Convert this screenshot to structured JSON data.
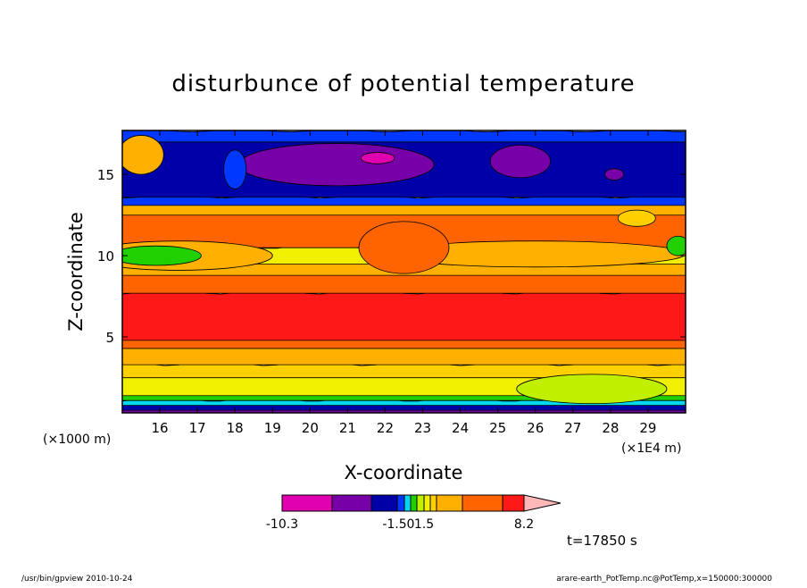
{
  "chart_data": {
    "type": "heatmap",
    "subtype": "filled-contour",
    "title": "disturbunce of potential temperature",
    "xlabel": "X-coordinate",
    "ylabel": "Z-coordinate",
    "x_units_label": "(×1E4 m)",
    "y_units_label": "(×1000 m)",
    "xlim": [
      15,
      30
    ],
    "ylim": [
      0.33,
      17.7
    ],
    "xticks": [
      "16",
      "17",
      "18",
      "19",
      "20",
      "21",
      "22",
      "23",
      "24",
      "25",
      "26",
      "27",
      "28",
      "29"
    ],
    "xtick_values": [
      16,
      17,
      18,
      19,
      20,
      21,
      22,
      23,
      24,
      25,
      26,
      27,
      28,
      29
    ],
    "yticks": [
      "5",
      "10",
      "15"
    ],
    "ytick_values": [
      5,
      10,
      15
    ],
    "time_label": "t=17850 s",
    "colorbar": {
      "labels": [
        "-10.3",
        "-1.5",
        "0",
        "1.5",
        "8.2"
      ],
      "colors": [
        "#e000b0",
        "#7800a8",
        "#0000a8",
        "#0038ff",
        "#00d8f0",
        "#20d000",
        "#c0f000",
        "#f0f000",
        "#ffd000",
        "#ffb000",
        "#ff6400",
        "#ff1818",
        "#ff7878",
        "#ffb8b8"
      ]
    },
    "bands": [
      {
        "z0": 0.33,
        "z1": 0.6,
        "color": "#7800a8"
      },
      {
        "z0": 0.6,
        "z1": 0.9,
        "color": "#0000a8"
      },
      {
        "z0": 0.9,
        "z1": 1.2,
        "color": "#00d8f0"
      },
      {
        "z0": 1.2,
        "z1": 1.5,
        "color": "#20d000"
      },
      {
        "z0": 1.5,
        "z1": 2.6,
        "color": "#f0f000"
      },
      {
        "z0": 2.6,
        "z1": 3.4,
        "color": "#ffd000"
      },
      {
        "z0": 3.4,
        "z1": 4.4,
        "color": "#ffb000"
      },
      {
        "z0": 4.4,
        "z1": 4.9,
        "color": "#ff6400"
      },
      {
        "z0": 4.9,
        "z1": 7.8,
        "color": "#ff1818"
      },
      {
        "z0": 7.8,
        "z1": 8.9,
        "color": "#ff6400"
      },
      {
        "z0": 8.9,
        "z1": 9.6,
        "color": "#ffb000"
      },
      {
        "z0": 9.6,
        "z1": 10.6,
        "color": "#f0f000"
      },
      {
        "z0": 10.6,
        "z1": 12.6,
        "color": "#ff6400"
      },
      {
        "z0": 12.6,
        "z1": 13.2,
        "color": "#ffb000"
      },
      {
        "z0": 13.2,
        "z1": 13.7,
        "color": "#0038ff"
      },
      {
        "z0": 13.7,
        "z1": 17.1,
        "color": "#0000a8"
      },
      {
        "z0": 17.1,
        "z1": 17.7,
        "color": "#0038ff"
      }
    ],
    "blobs": [
      {
        "x": 20.7,
        "z": 15.6,
        "rx": 2.6,
        "rz": 1.3,
        "color": "#7800a8"
      },
      {
        "x": 21.8,
        "z": 16.0,
        "rx": 0.45,
        "rz": 0.35,
        "color": "#e000b0"
      },
      {
        "x": 25.6,
        "z": 15.8,
        "rx": 0.8,
        "rz": 1.0,
        "color": "#7800a8"
      },
      {
        "x": 28.1,
        "z": 15.0,
        "rx": 0.25,
        "rz": 0.35,
        "color": "#7800a8"
      },
      {
        "x": 15.5,
        "z": 16.2,
        "rx": 0.6,
        "rz": 1.2,
        "color": "#ffb000"
      },
      {
        "x": 18.0,
        "z": 15.3,
        "rx": 0.3,
        "rz": 1.2,
        "color": "#0038ff"
      },
      {
        "x": 16.5,
        "z": 10.0,
        "rx": 2.5,
        "rz": 0.9,
        "color": "#ffb000"
      },
      {
        "x": 15.9,
        "z": 10.0,
        "rx": 1.2,
        "rz": 0.6,
        "color": "#20d000"
      },
      {
        "x": 26.0,
        "z": 10.1,
        "rx": 4.0,
        "rz": 0.8,
        "color": "#ffb000"
      },
      {
        "x": 22.5,
        "z": 10.5,
        "rx": 1.2,
        "rz": 1.6,
        "color": "#ff6400"
      },
      {
        "x": 29.8,
        "z": 10.6,
        "rx": 0.3,
        "rz": 0.6,
        "color": "#20d000"
      },
      {
        "x": 28.7,
        "z": 12.3,
        "rx": 0.5,
        "rz": 0.5,
        "color": "#ffd000"
      },
      {
        "x": 27.5,
        "z": 1.8,
        "rx": 2.0,
        "rz": 0.9,
        "color": "#c0f000"
      }
    ]
  },
  "footer": {
    "left": "/usr/bin/gpview  2010-10-24",
    "right": "arare-earth_PotTemp.nc@PotTemp,x=150000:300000"
  }
}
